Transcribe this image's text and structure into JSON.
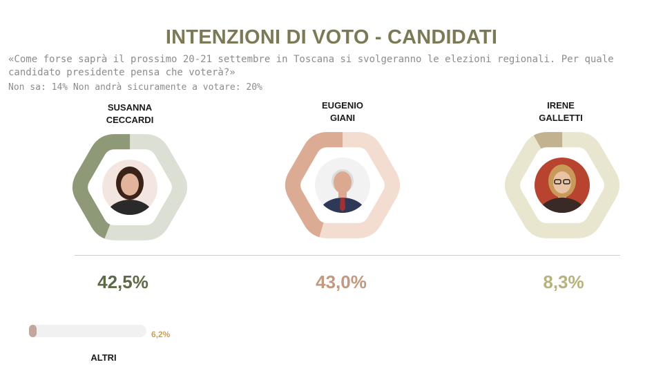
{
  "title": "INTENZIONI DI VOTO - CANDIDATI",
  "question": "«Come forse saprà il prossimo 20-21 settembre in Toscana si svolgeranno le elezioni regionali. Per quale candidato presidente pensa che voterà?»",
  "notes": "Non sa: 14%   Non andrà sicuramente a votare: 20%",
  "chart_data": {
    "type": "bar",
    "title": "INTENZIONI DI VOTO - CANDIDATI",
    "categories": [
      "SUSANNA CECCARDI",
      "EUGENIO GIANI",
      "IRENE GALLETTI",
      "ALTRI"
    ],
    "values": [
      42.5,
      43.0,
      8.3,
      6.2
    ],
    "labels": [
      "42,5%",
      "43,0%",
      "8,3%",
      "6,2%"
    ],
    "unit": "%",
    "ylim": [
      0,
      100
    ]
  },
  "candidates": [
    {
      "name": "SUSANNA\nCECCARDI",
      "pct_label": "42,5%",
      "value": 42.5,
      "color": "#8e9a77",
      "track": "#dcdfd3",
      "pct_color": "#5b6b45",
      "avatar_bg": "#f3e6e0",
      "hair": "#3a2218",
      "skin": "#e2b49c",
      "cloth": "#2a2a2a",
      "icon": "portrait-icon"
    },
    {
      "name": "EUGENIO\nGIANI",
      "pct_label": "43,0%",
      "value": 43.0,
      "color": "#dcab94",
      "track": "#f3dcd0",
      "pct_color": "#c4977f",
      "avatar_bg": "#f2f2f2",
      "hair": "#dcdcdc",
      "skin": "#dba98f",
      "cloth": "#2d3956",
      "icon": "portrait-icon"
    },
    {
      "name": "IRENE\nGALLETTI",
      "pct_label": "8,3%",
      "value": 8.3,
      "color": "#c2b290",
      "track": "#e9e6cf",
      "pct_color": "#b8b27c",
      "avatar_bg": "#b8432e",
      "hair": "#c89a5a",
      "skin": "#e9c3a3",
      "cloth": "#3a2a25",
      "icon": "portrait-icon"
    }
  ],
  "others": {
    "label": "ALTRI",
    "pct_label": "6,2%",
    "value": 6.2
  }
}
